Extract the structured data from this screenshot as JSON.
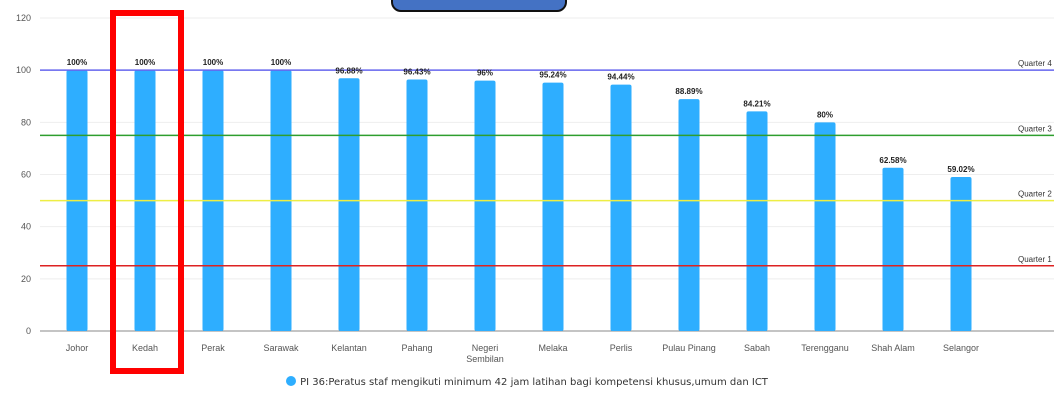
{
  "colors": {
    "bar": "#2eaeff",
    "highlight": "#ff0000",
    "tab": "#4472c4"
  },
  "chart_data": {
    "type": "bar",
    "categories": [
      "Johor",
      "Kedah",
      "Perak",
      "Sarawak",
      "Kelantan",
      "Pahang",
      "Negeri Sembilan",
      "Melaka",
      "Perlis",
      "Pulau Pinang",
      "Sabah",
      "Terengganu",
      "Shah Alam",
      "Selangor"
    ],
    "series": [
      {
        "name": "PI 36:Peratus staf mengikuti minimum 42 jam latihan bagi kompetensi khusus,umum dan ICT",
        "values": [
          100,
          100,
          100,
          100,
          96.88,
          96.43,
          96,
          95.24,
          94.44,
          88.89,
          84.21,
          80,
          62.58,
          59.02
        ],
        "labels": [
          "100%",
          "100%",
          "100%",
          "100%",
          "96.88%",
          "96.43%",
          "96%",
          "95.24%",
          "94.44%",
          "88.89%",
          "84.21%",
          "80%",
          "62.58%",
          "59.02%"
        ]
      }
    ],
    "ylim": [
      0,
      120
    ],
    "yticks": [
      "0",
      "20",
      "40",
      "60",
      "80",
      "100",
      "120"
    ],
    "grid": true,
    "legend": "bottom",
    "reference_lines": [
      {
        "label": "Quarter 4",
        "value": 100,
        "color": "#6666ee"
      },
      {
        "label": "Quarter 3",
        "value": 75,
        "color": "#2e9e2e"
      },
      {
        "label": "Quarter 2",
        "value": 50,
        "color": "#eeee44"
      },
      {
        "label": "Quarter 1",
        "value": 25,
        "color": "#dd2222"
      }
    ],
    "highlighted_category": "Kedah"
  }
}
